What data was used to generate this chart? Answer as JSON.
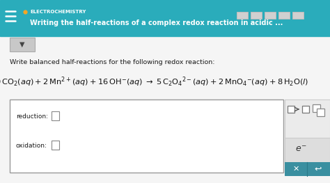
{
  "bg_color": "#f5f5f5",
  "header_bg": "#2aacbb",
  "header_text_color": "#ffffff",
  "header_label": "ELECTROCHEMISTRY",
  "header_title": "Writing the half-reactions of a complex redox reaction in acidic ...",
  "instruction": "Write balanced half-reactions for the following redox reaction:",
  "box_bg": "#ffffff",
  "box_border": "#999999",
  "reduction_label": "reduction:",
  "oxidation_label": "oxidation:",
  "sidebar_teal": "#3a8fa0",
  "dot_color": "#f5a623",
  "hamburger_color": "#ffffff",
  "progress_bar_color": "#d0d0d0",
  "progress_bar_edge": "#bbbbbb",
  "dropdown_bg": "#c8c8c8",
  "dropdown_edge": "#aaaaaa",
  "sidebar_upper_bg": "#ebebeb",
  "sidebar_mid_bg": "#dddddd",
  "sidebar_edge": "#cccccc"
}
